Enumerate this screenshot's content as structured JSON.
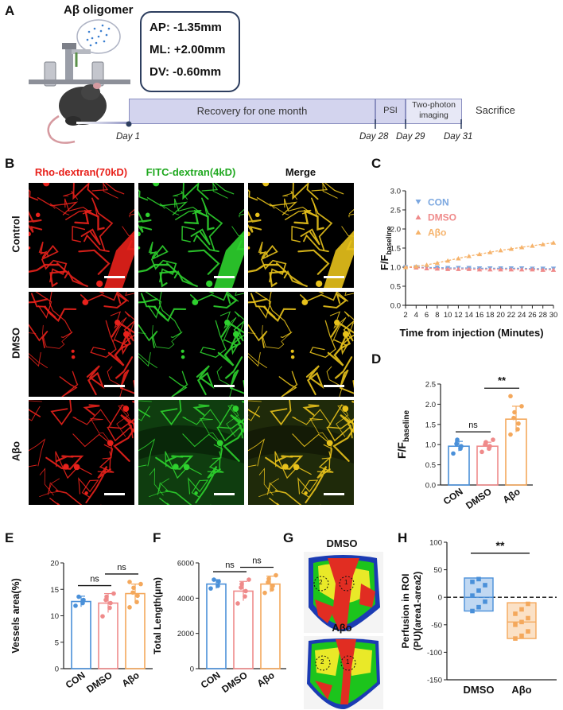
{
  "panels": {
    "A": "A",
    "B": "B",
    "C": "C",
    "D": "D",
    "E": "E",
    "F": "F",
    "G": "G",
    "H": "H"
  },
  "panelA": {
    "injection_title": "Aβ oligomer",
    "coords": [
      "AP:  -1.35mm",
      "ML: +2.00mm",
      "DV:  -0.60mm"
    ],
    "timeline": {
      "recovery": "Recovery for one month",
      "psi": "PSI",
      "imaging_1": "Two-photon",
      "imaging_2": "imaging",
      "sacrifice": "Sacrifice",
      "days": [
        "Day 1",
        "Day 28",
        "Day 29",
        "Day 31"
      ]
    },
    "colors": {
      "bar_fill": "#d3d4ee",
      "bar_border": "#8b8fc0",
      "coord_border": "#2d3e5f"
    }
  },
  "panelB": {
    "columns": [
      "Rho-dextran(70kD)",
      "FITC-dextran(4kD)",
      "Merge"
    ],
    "column_colors": [
      "#e8211b",
      "#1fa81f",
      "#111111"
    ],
    "rows": [
      "Control",
      "DMSO",
      "Aβo"
    ]
  },
  "panelC": {
    "chart_data": {
      "type": "line",
      "x": [
        2,
        4,
        6,
        8,
        10,
        12,
        14,
        16,
        18,
        20,
        22,
        24,
        26,
        28,
        30
      ],
      "series": [
        {
          "name": "CON",
          "color": "#7ba7e0",
          "marker": "triangle-down",
          "values": [
            1.0,
            1.0,
            0.99,
            0.99,
            0.98,
            0.98,
            0.98,
            0.97,
            0.97,
            0.97,
            0.97,
            0.97,
            0.96,
            0.96,
            0.96
          ]
        },
        {
          "name": "DMSO",
          "color": "#ef8a8a",
          "marker": "triangle-up",
          "values": [
            1.0,
            0.99,
            0.97,
            0.96,
            0.95,
            0.95,
            0.95,
            0.94,
            0.94,
            0.94,
            0.94,
            0.94,
            0.94,
            0.93,
            0.93
          ]
        },
        {
          "name": "Aβo",
          "color": "#f6b36b",
          "marker": "triangle-up",
          "values": [
            1.0,
            1.02,
            1.06,
            1.11,
            1.17,
            1.23,
            1.29,
            1.34,
            1.39,
            1.44,
            1.48,
            1.52,
            1.56,
            1.6,
            1.64
          ]
        }
      ],
      "xlabel": "Time from injection  (Minutes)",
      "ylabel": "F/F",
      "ylabel_sub": "baseline",
      "xticks": [
        "2",
        "4",
        "6",
        "8",
        "10",
        "12",
        "14",
        "16",
        "18",
        "20",
        "22",
        "24",
        "26",
        "28",
        "30"
      ],
      "yticks": [
        "0.0",
        "0.5",
        "1.0",
        "1.5",
        "2.0",
        "2.5",
        "3.0"
      ],
      "xlim": [
        2,
        30
      ],
      "ylim": [
        0,
        3.0
      ],
      "legend": "top-left"
    }
  },
  "panelD": {
    "chart_data": {
      "type": "bar",
      "categories": [
        "CON",
        "DMSO",
        "Aβo"
      ],
      "values": [
        0.96,
        0.96,
        1.63
      ],
      "errors": [
        0.12,
        0.1,
        0.32
      ],
      "points": [
        [
          0.78,
          0.9,
          0.96,
          1.02,
          1.12
        ],
        [
          0.82,
          0.9,
          0.96,
          1.0,
          1.06,
          1.12
        ],
        [
          1.25,
          1.38,
          1.52,
          1.66,
          1.8,
          1.95,
          2.2
        ]
      ],
      "colors": [
        "#4a90d9",
        "#ef8a8a",
        "#f4a85c"
      ],
      "ylabel": "F/F",
      "ylabel_sub": "baseline",
      "yticks": [
        "0.0",
        "0.5",
        "1.0",
        "1.5",
        "2.0",
        "2.5"
      ],
      "ylim": [
        0,
        2.5
      ],
      "sig": [
        {
          "from": 0,
          "to": 1,
          "label": "ns"
        },
        {
          "from": 1,
          "to": 2,
          "label": "**"
        }
      ]
    }
  },
  "panelE": {
    "chart_data": {
      "type": "bar",
      "categories": [
        "CON",
        "DMSO",
        "Aβo"
      ],
      "values": [
        12.7,
        12.4,
        14.2
      ],
      "errors": [
        1.0,
        1.8,
        1.8
      ],
      "points": [
        [
          11.9,
          12.4,
          13.0,
          13.6
        ],
        [
          9.9,
          11.5,
          12.4,
          13.0,
          13.6,
          14.2
        ],
        [
          11.6,
          12.6,
          13.8,
          14.4,
          15.3,
          16.0,
          16.4
        ]
      ],
      "colors": [
        "#4a90d9",
        "#ef8a8a",
        "#f4a85c"
      ],
      "ylabel": "Vessels area(%)",
      "yticks": [
        "0",
        "5",
        "10",
        "15",
        "20"
      ],
      "ylim": [
        0,
        20
      ],
      "sig": [
        {
          "from": 0,
          "to": 1,
          "label": "ns"
        },
        {
          "from": 1,
          "to": 2,
          "label": "ns"
        }
      ]
    }
  },
  "panelF": {
    "chart_data": {
      "type": "bar",
      "categories": [
        "CON",
        "DMSO",
        "Aβo"
      ],
      "values": [
        4800,
        4400,
        4800
      ],
      "errors": [
        250,
        550,
        450
      ],
      "points": [
        [
          4550,
          4700,
          4950,
          5050
        ],
        [
          3700,
          4100,
          4400,
          4600,
          4800,
          5050
        ],
        [
          4300,
          4500,
          4700,
          4900,
          5100,
          5300
        ]
      ],
      "colors": [
        "#4a90d9",
        "#ef8a8a",
        "#f4a85c"
      ],
      "ylabel": "Total  Length(μm)",
      "yticks": [
        "0",
        "2000",
        "4000",
        "6000"
      ],
      "ylim": [
        0,
        6000
      ],
      "sig": [
        {
          "from": 0,
          "to": 1,
          "label": "ns"
        },
        {
          "from": 1,
          "to": 2,
          "label": "ns"
        }
      ]
    }
  },
  "panelG": {
    "images": [
      "DMSO",
      "Aβo"
    ],
    "roi_labels": [
      "2",
      "1"
    ]
  },
  "panelH": {
    "chart_data": {
      "type": "box",
      "categories": [
        "DMSO",
        "Aβo"
      ],
      "box_low": [
        -25,
        -75
      ],
      "box_high": [
        35,
        -10
      ],
      "medians": [
        0,
        -45
      ],
      "points": [
        [
          -25,
          -18,
          -8,
          3,
          12,
          22,
          28,
          33
        ],
        [
          -75,
          -70,
          -62,
          -50,
          -45,
          -38,
          -30,
          -22,
          -12
        ]
      ],
      "colors": [
        "#4a90d9",
        "#f4a85c"
      ],
      "ylabel_1": "Perfusion in ROI",
      "ylabel_2": "(PU)(area1-area2)",
      "yticks": [
        "100",
        "50",
        "0",
        "-50",
        "-100",
        "-150"
      ],
      "ylim": [
        -150,
        100
      ],
      "sig": [
        {
          "from": 0,
          "to": 1,
          "label": "**"
        }
      ]
    }
  }
}
